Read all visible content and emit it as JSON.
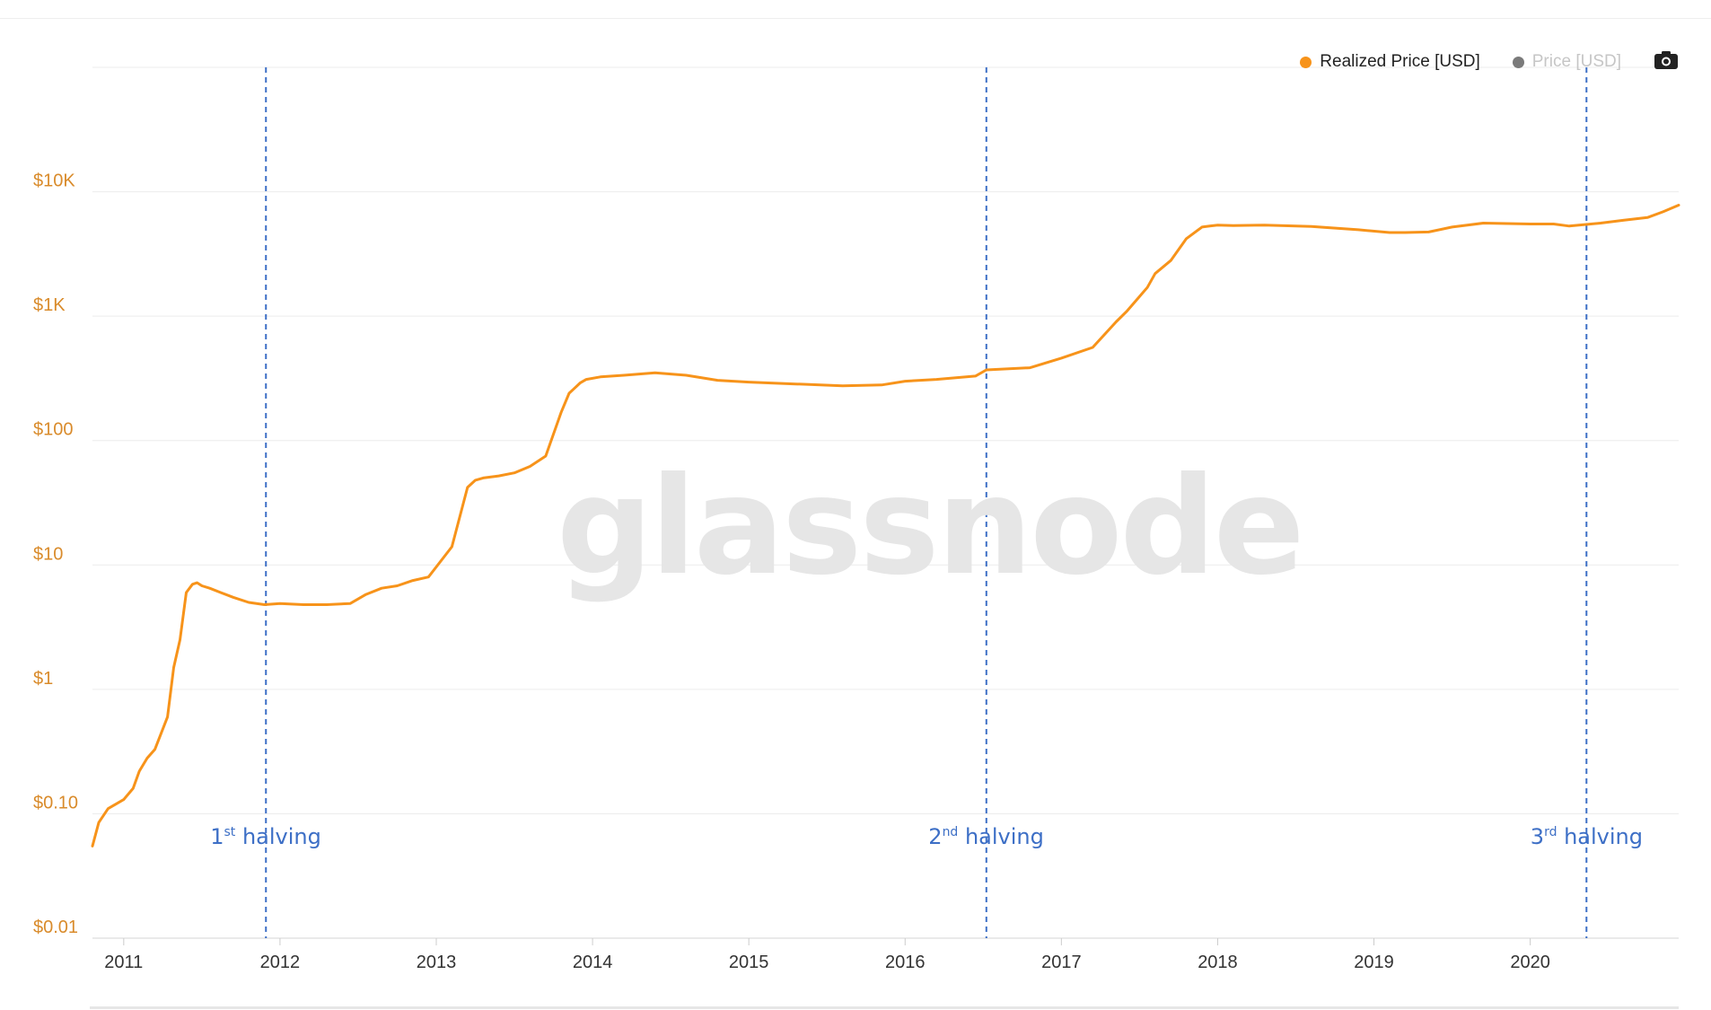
{
  "watermark": "glassnode",
  "legend": [
    {
      "label": "Realized Price [USD]",
      "color": "#f7931a",
      "active": true
    },
    {
      "label": "Price [USD]",
      "color": "#7a7a7a",
      "active": false
    }
  ],
  "toolbar": {
    "camera_icon": "camera-icon"
  },
  "annotations": [
    {
      "ordinal": "1",
      "suffix": "st",
      "text": "halving",
      "x": 2011.91
    },
    {
      "ordinal": "2",
      "suffix": "nd",
      "text": "halving",
      "x": 2016.52
    },
    {
      "ordinal": "3",
      "suffix": "rd",
      "text": "halving",
      "x": 2020.36
    }
  ],
  "chart_data": {
    "type": "line",
    "title": "",
    "xlabel": "",
    "ylabel": "",
    "y_scale": "log",
    "ylim": [
      0.01,
      100000
    ],
    "xlim": [
      2010.8,
      2020.95
    ],
    "grid": true,
    "legend_position": "top-right",
    "y_ticks": [
      "$0.01",
      "$0.10",
      "$1",
      "$10",
      "$100",
      "$1K",
      "$10K"
    ],
    "y_tick_values": [
      0.01,
      0.1,
      1,
      10,
      100,
      1000,
      10000
    ],
    "x_ticks": [
      "2011",
      "2012",
      "2013",
      "2014",
      "2015",
      "2016",
      "2017",
      "2018",
      "2019",
      "2020"
    ],
    "x_tick_values": [
      2011,
      2012,
      2013,
      2014,
      2015,
      2016,
      2017,
      2018,
      2019,
      2020
    ],
    "series": [
      {
        "name": "Realized Price [USD]",
        "color": "#f7931a",
        "x": [
          2010.8,
          2010.84,
          2010.9,
          2011.0,
          2011.06,
          2011.1,
          2011.15,
          2011.2,
          2011.28,
          2011.32,
          2011.36,
          2011.4,
          2011.44,
          2011.47,
          2011.5,
          2011.55,
          2011.62,
          2011.7,
          2011.8,
          2011.9,
          2012.0,
          2012.15,
          2012.3,
          2012.45,
          2012.55,
          2012.65,
          2012.75,
          2012.85,
          2012.95,
          2013.1,
          2013.2,
          2013.25,
          2013.3,
          2013.4,
          2013.5,
          2013.6,
          2013.7,
          2013.8,
          2013.85,
          2013.88,
          2013.92,
          2013.96,
          2014.05,
          2014.2,
          2014.4,
          2014.6,
          2014.8,
          2015.0,
          2015.3,
          2015.6,
          2015.85,
          2016.0,
          2016.2,
          2016.45,
          2016.52,
          2016.8,
          2017.0,
          2017.2,
          2017.35,
          2017.42,
          2017.55,
          2017.6,
          2017.7,
          2017.8,
          2017.9,
          2017.95,
          2018.0,
          2018.1,
          2018.3,
          2018.6,
          2018.9,
          2019.1,
          2019.2,
          2019.35,
          2019.5,
          2019.7,
          2020.0,
          2020.15,
          2020.25,
          2020.45,
          2020.6,
          2020.75,
          2020.85,
          2020.95
        ],
        "values": [
          0.055,
          0.085,
          0.11,
          0.13,
          0.16,
          0.22,
          0.28,
          0.33,
          0.6,
          1.5,
          2.5,
          6.0,
          7.0,
          7.2,
          6.8,
          6.5,
          6.0,
          5.5,
          5.0,
          4.8,
          4.9,
          4.8,
          4.8,
          4.9,
          5.8,
          6.5,
          6.8,
          7.5,
          8.0,
          14,
          42,
          48,
          50,
          52,
          55,
          62,
          75,
          170,
          240,
          260,
          290,
          310,
          325,
          335,
          350,
          335,
          305,
          295,
          285,
          275,
          280,
          300,
          310,
          330,
          370,
          385,
          460,
          560,
          900,
          1100,
          1700,
          2200,
          2800,
          4200,
          5200,
          5300,
          5400,
          5350,
          5400,
          5250,
          4950,
          4700,
          4700,
          4750,
          5200,
          5600,
          5500,
          5500,
          5300,
          5600,
          5900,
          6200,
          6900,
          7800
        ]
      }
    ]
  }
}
